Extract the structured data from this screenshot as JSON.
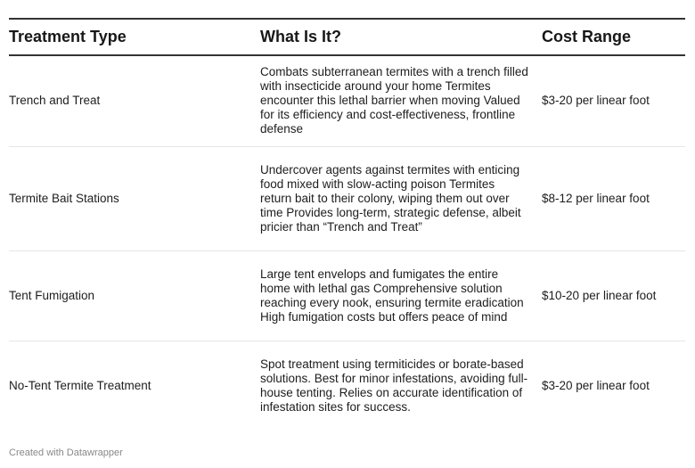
{
  "table": {
    "headers": {
      "type": "Treatment Type",
      "what": "What Is It?",
      "cost": "Cost Range"
    },
    "rows": [
      {
        "type": "Trench and Treat",
        "what": "Combats subterranean termites with a trench filled with insecticide around your home Termites encounter this lethal barrier when moving Valued for its efficiency and cost-effectiveness, frontline defense",
        "cost": "$3-20 per linear foot"
      },
      {
        "type": "Termite Bait Stations",
        "what": "Undercover agents against termites with enticing food mixed with slow-acting poison Termites return bait to their colony, wiping them out over time Provides long-term, strategic defense, albeit pricier than “Trench and Treat”",
        "cost": "$8-12 per linear foot"
      },
      {
        "type": "Tent Fumigation",
        "what": "Large tent envelops and fumigates the entire home with lethal gas Comprehensive solution reaching every nook, ensuring termite eradication High fumigation costs but offers peace of mind",
        "cost": "$10-20 per linear foot"
      },
      {
        "type": "No-Tent Termite Treatment",
        "what": "Spot treatment using termiticides or borate-based solutions. Best for minor infestations, avoiding full-house tenting. Relies on accurate identification of infestation sites for success.",
        "cost": "$3-20 per linear foot"
      }
    ]
  },
  "footer": {
    "credit": "Created with Datawrapper"
  }
}
